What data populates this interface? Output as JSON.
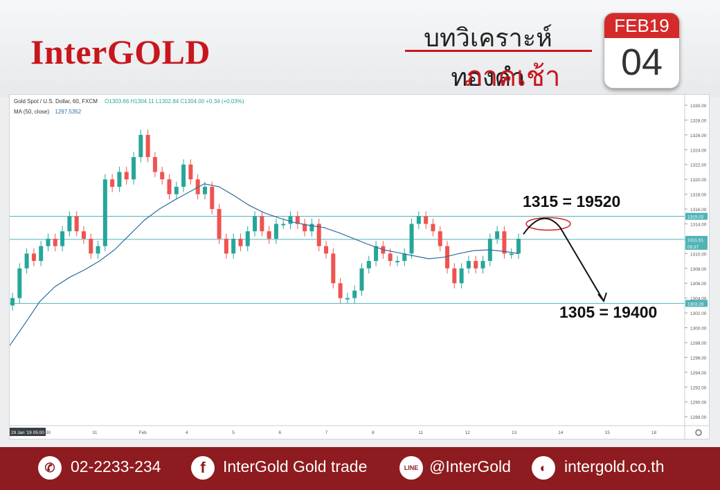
{
  "header": {
    "logo": "InterGOLD",
    "title_line1": "บทวิเคราะห์ทองคำ",
    "title_line2": "ภาคเช้า",
    "calendar_month": "FEB19",
    "calendar_day": "04"
  },
  "chart_data": {
    "type": "line",
    "title": "Gold Spot / U.S. Dollar, 60, FXCM",
    "ohlc_readout": "O1303.66 H1304.11 L1302.84 C1304.00 +0.34 (+0.03%)",
    "ma_label": "MA (50, close)",
    "ma_value": "1297.5352",
    "x_tick_labels": [
      "29 Jan '19 05:00",
      "30",
      "31",
      "Feb",
      "4",
      "5",
      "6",
      "7",
      "8",
      "11",
      "12",
      "13",
      "14",
      "15",
      "18"
    ],
    "y_ticks": [
      "1330.00",
      "1328.00",
      "1326.00",
      "1324.00",
      "1322.00",
      "1320.00",
      "1318.00",
      "1316.00",
      "1314.00",
      "1312.00",
      "1310.00",
      "1308.00",
      "1306.00",
      "1304.00",
      "1302.00",
      "1300.00",
      "1298.00",
      "1296.00",
      "1294.00",
      "1292.00",
      "1290.00",
      "1288.00"
    ],
    "ylim": [
      1286.8,
      1331.4
    ],
    "price_labels": [
      "1315.02",
      "1311.91",
      "05:37",
      "1303.28"
    ],
    "horizontal_levels": [
      1315.02,
      1311.91,
      1303.28
    ],
    "series": [
      {
        "values": [
          1304,
          1308,
          1310,
          1309,
          1311,
          1312,
          1311,
          1313,
          1315,
          1313,
          1312,
          1310,
          1311,
          1320,
          1319,
          1321,
          1320,
          1323,
          1326,
          1323,
          1321,
          1320,
          1318,
          1319,
          1322,
          1320,
          1318,
          1319,
          1316,
          1312,
          1310,
          1312,
          1311,
          1313,
          1315,
          1313,
          1312,
          1314,
          1314,
          1315,
          1314,
          1313,
          1314,
          1311,
          1310,
          1306,
          1304,
          1304,
          1305,
          1308,
          1309,
          1311,
          1310,
          1309,
          1309,
          1310,
          1314,
          1315,
          1314,
          1313,
          1311,
          1308,
          1306,
          1308,
          1309,
          1308,
          1309,
          1312,
          1313,
          1310,
          1310,
          1312
        ]
      },
      {
        "name": "MA (50, close)",
        "values": [
          1297.6,
          1300.5,
          1303.5,
          1305.5,
          1306.8,
          1307.8,
          1309.0,
          1310.5,
          1312.5,
          1314.5,
          1316.0,
          1317.2,
          1318.3,
          1319.4,
          1319.0,
          1317.8,
          1316.5,
          1315.5,
          1314.8,
          1314.2,
          1313.8,
          1313.5,
          1312.8,
          1312.0,
          1311.2,
          1310.5,
          1310.1,
          1309.7,
          1309.3,
          1309.5,
          1310.0,
          1310.4,
          1310.5,
          1310.3,
          1310.0
        ]
      }
    ],
    "annotations": [
      {
        "text": "1315 = 19520"
      },
      {
        "text": "1305 = 19400"
      }
    ]
  },
  "footer": {
    "phone": "02-2233-234",
    "facebook": "InterGold Gold trade",
    "line": "@InterGold",
    "website": "intergold.co.th",
    "phone_icon_text": "✆",
    "facebook_icon_text": "f",
    "line_icon_text": "LINE",
    "web_icon_text": "◐"
  }
}
